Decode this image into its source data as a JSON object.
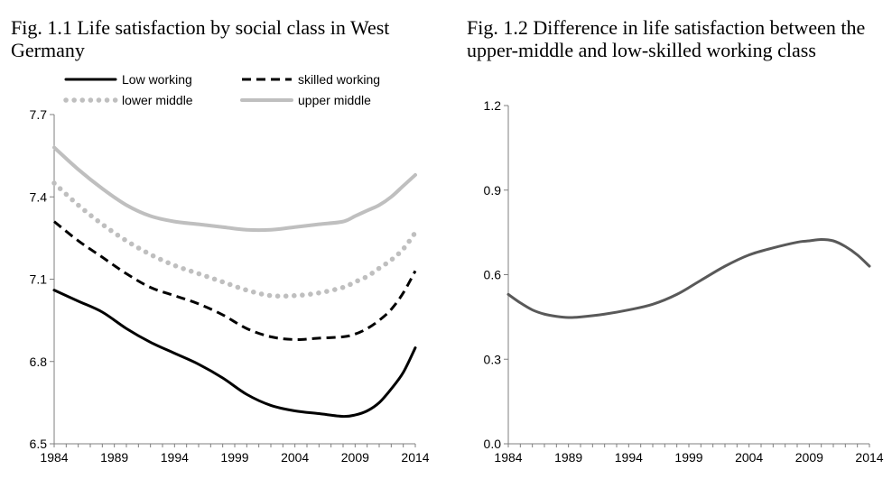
{
  "chart_data": [
    {
      "type": "line",
      "title": "Fig. 1.1 Life satisfaction by social class in West Germany",
      "xlabel": "",
      "ylabel": "",
      "xlim": [
        1984,
        2014
      ],
      "ylim": [
        6.5,
        7.7
      ],
      "x_ticks": [
        "1984",
        "1989",
        "1994",
        "1999",
        "2004",
        "2009",
        "2014"
      ],
      "y_ticks": [
        "6.5",
        "6.8",
        "7.1",
        "7.4",
        "7.7"
      ],
      "legend_position": "top",
      "grid": false,
      "x": [
        1984,
        1986,
        1988,
        1990,
        1992,
        1994,
        1996,
        1998,
        2000,
        2002,
        2004,
        2006,
        2008,
        2009,
        2010,
        2011,
        2012,
        2013,
        2014
      ],
      "series": [
        {
          "name": "Low working",
          "color": "#000000",
          "style": "solid",
          "values": [
            7.06,
            7.02,
            6.98,
            6.92,
            6.87,
            6.83,
            6.79,
            6.74,
            6.68,
            6.64,
            6.62,
            6.61,
            6.6,
            6.605,
            6.62,
            6.65,
            6.7,
            6.76,
            6.85
          ]
        },
        {
          "name": "skilled working",
          "color": "#000000",
          "style": "dashed",
          "values": [
            7.31,
            7.24,
            7.18,
            7.12,
            7.07,
            7.04,
            7.01,
            6.97,
            6.92,
            6.89,
            6.88,
            6.885,
            6.89,
            6.9,
            6.92,
            6.95,
            6.99,
            7.05,
            7.13
          ]
        },
        {
          "name": "lower middle",
          "color": "#bfbfbf",
          "style": "dotted",
          "values": [
            7.45,
            7.37,
            7.3,
            7.24,
            7.19,
            7.15,
            7.12,
            7.09,
            7.06,
            7.04,
            7.04,
            7.05,
            7.07,
            7.09,
            7.11,
            7.14,
            7.17,
            7.21,
            7.27
          ]
        },
        {
          "name": "upper middle",
          "color": "#bfbfbf",
          "style": "solid",
          "values": [
            7.58,
            7.5,
            7.43,
            7.37,
            7.33,
            7.31,
            7.3,
            7.29,
            7.28,
            7.28,
            7.29,
            7.3,
            7.31,
            7.33,
            7.35,
            7.37,
            7.4,
            7.44,
            7.48
          ]
        }
      ]
    },
    {
      "type": "line",
      "title": "Fig. 1.2 Difference in life satisfaction between the upper-middle and low-skilled working class",
      "xlabel": "",
      "ylabel": "",
      "xlim": [
        1984,
        2014
      ],
      "ylim": [
        0.0,
        1.2
      ],
      "x_ticks": [
        "1984",
        "1989",
        "1994",
        "1999",
        "2004",
        "2009",
        "2014"
      ],
      "y_ticks": [
        "0.0",
        "0.3",
        "0.6",
        "0.9",
        "1.2"
      ],
      "grid": false,
      "x": [
        1984,
        1985,
        1986,
        1987,
        1988,
        1989,
        1990,
        1992,
        1994,
        1996,
        1998,
        2000,
        2002,
        2004,
        2006,
        2008,
        2009,
        2010,
        2011,
        2012,
        2013,
        2014
      ],
      "series": [
        {
          "color": "#595959",
          "style": "solid",
          "values": [
            0.53,
            0.5,
            0.475,
            0.46,
            0.452,
            0.448,
            0.45,
            0.46,
            0.475,
            0.495,
            0.53,
            0.58,
            0.63,
            0.67,
            0.695,
            0.715,
            0.72,
            0.725,
            0.72,
            0.7,
            0.67,
            0.63
          ]
        }
      ]
    }
  ]
}
